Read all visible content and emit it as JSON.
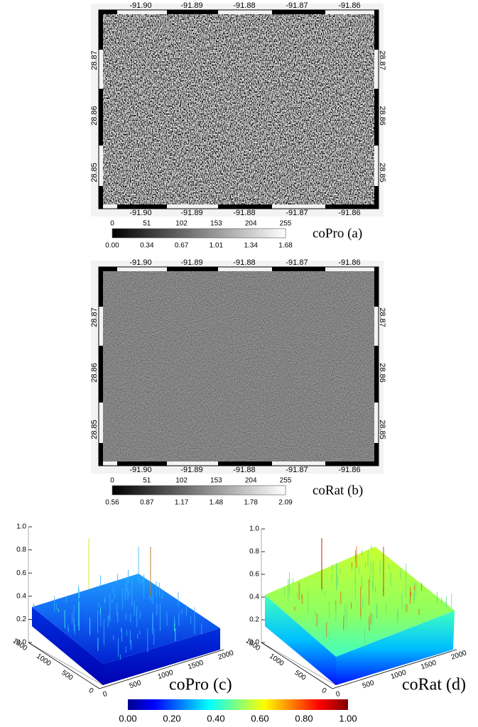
{
  "maps": [
    {
      "top_labels": [
        "-91.90",
        "-91.89",
        "-91.88",
        "-91.87",
        "-91.86"
      ],
      "bottom_labels": [
        "-91.90",
        "-91.89",
        "-91.88",
        "-91.87",
        "-91.86"
      ],
      "left_labels": [
        "28.87",
        "28.86",
        "28.85"
      ],
      "right_labels": [
        "28.87",
        "28.86",
        "28.85"
      ],
      "colorbar": {
        "top_labels": [
          "0",
          "51",
          "102",
          "153",
          "204",
          "255"
        ],
        "bottom_labels": [
          "0.00",
          "0.34",
          "0.67",
          "1.01",
          "1.34",
          "1.68"
        ]
      },
      "caption": "coPro (a)"
    },
    {
      "top_labels": [
        "-91.90",
        "-91.89",
        "-91.88",
        "-91.87",
        "-91.86"
      ],
      "bottom_labels": [
        "-91.90",
        "-91.89",
        "-91.88",
        "-91.87",
        "-91.86"
      ],
      "left_labels": [
        "28.87",
        "28.86",
        "28.85"
      ],
      "right_labels": [
        "28.87",
        "28.86",
        "28.85"
      ],
      "colorbar": {
        "top_labels": [
          "0",
          "51",
          "102",
          "153",
          "204",
          "255"
        ],
        "bottom_labels": [
          "0.56",
          "0.87",
          "1.17",
          "1.48",
          "1.78",
          "2.09"
        ]
      },
      "caption": "coRat (b)"
    }
  ],
  "surfaces": [
    {
      "z_labels": [
        "1.0",
        "0.8",
        "0.6",
        "0.4",
        "0.2",
        "0.0"
      ],
      "y_labels": [
        "1500",
        "1000",
        "500",
        "0"
      ],
      "x_labels": [
        "0",
        "500",
        "1000",
        "1500",
        "2000"
      ],
      "caption": "coPro (c)"
    },
    {
      "z_labels": [
        "1.0",
        "0.8",
        "0.6",
        "0.4",
        "0.2",
        "0.0"
      ],
      "y_labels": [
        "1500",
        "1000",
        "500",
        "0"
      ],
      "x_labels": [
        "0",
        "500",
        "1000",
        "1500",
        "2000"
      ],
      "caption": "coRat (d)"
    }
  ],
  "colorbar": {
    "labels": [
      "0.00",
      "0.20",
      "0.40",
      "0.60",
      "0.80",
      "1.00"
    ]
  }
}
